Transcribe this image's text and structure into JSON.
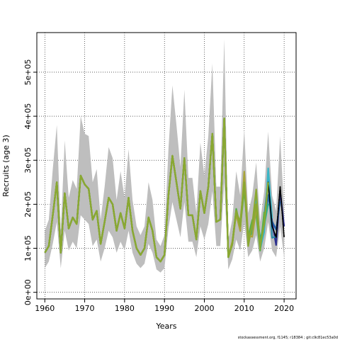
{
  "chart_data": {
    "type": "line",
    "xlabel": "Years",
    "ylabel": "Recruits (age 3)",
    "xlim": [
      1958,
      2023
    ],
    "ylim": [
      -15000,
      590000
    ],
    "x_ticks": [
      1960,
      1970,
      1980,
      1990,
      2000,
      2010,
      2020
    ],
    "x_tick_labels": [
      "1960",
      "1970",
      "1980",
      "1990",
      "2000",
      "2010",
      "2020"
    ],
    "y_ticks": [
      0,
      100000,
      200000,
      300000,
      400000,
      500000
    ],
    "y_tick_labels": [
      "0e+00",
      "1e+05",
      "2e+05",
      "3e+05",
      "4e+05",
      "5e+05"
    ],
    "grid": true,
    "footer": "stockassessment.org, f1145; r18384 ; git:c9c81ec53a0d",
    "years": [
      1960,
      1961,
      1962,
      1963,
      1964,
      1965,
      1966,
      1967,
      1968,
      1969,
      1970,
      1971,
      1972,
      1973,
      1974,
      1975,
      1976,
      1977,
      1978,
      1979,
      1980,
      1981,
      1982,
      1983,
      1984,
      1985,
      1986,
      1987,
      1988,
      1989,
      1990,
      1991,
      1992,
      1993,
      1994,
      1995,
      1996,
      1997,
      1998,
      1999,
      2000,
      2001,
      2002,
      2003,
      2004,
      2005,
      2006,
      2007,
      2008,
      2009,
      2010,
      2011,
      2012,
      2013,
      2014,
      2015,
      2016,
      2017,
      2018,
      2019,
      2020
    ],
    "colors": {
      "ci_band": "#bebebe",
      "estimate": "#000000",
      "peel_series": [
        "#2b2f8f",
        "#1f5fa8",
        "#2a8aa8",
        "#3ab5c6",
        "#2bb08a",
        "#55b04a",
        "#8aa832",
        "#a8a43a"
      ]
    },
    "series": [
      {
        "role": "estimate",
        "values": [
          90000,
          105000,
          175000,
          250000,
          90000,
          225000,
          145000,
          170000,
          155000,
          265000,
          245000,
          235000,
          165000,
          185000,
          110000,
          160000,
          215000,
          200000,
          140000,
          180000,
          145000,
          215000,
          140000,
          100000,
          85000,
          100000,
          170000,
          140000,
          80000,
          70000,
          85000,
          220000,
          310000,
          250000,
          190000,
          305000,
          175000,
          175000,
          120000,
          230000,
          180000,
          240000,
          360000,
          160000,
          165000,
          395000,
          80000,
          110000,
          185000,
          150000,
          250000,
          120000,
          150000,
          200000,
          105000,
          155000,
          250000,
          150000,
          125000,
          240000,
          125000
        ]
      },
      {
        "role": "lower",
        "values": [
          55000,
          70000,
          110000,
          160000,
          55000,
          140000,
          95000,
          115000,
          100000,
          175000,
          165000,
          155000,
          105000,
          120000,
          70000,
          100000,
          140000,
          125000,
          90000,
          115000,
          95000,
          140000,
          90000,
          65000,
          55000,
          65000,
          110000,
          90000,
          52000,
          45000,
          55000,
          145000,
          205000,
          165000,
          125000,
          205000,
          115000,
          115000,
          80000,
          150000,
          120000,
          155000,
          230000,
          105000,
          105000,
          250000,
          52000,
          75000,
          120000,
          95000,
          160000,
          80000,
          95000,
          130000,
          70000,
          100000,
          160000,
          95000,
          80000,
          150000,
          80000
        ]
      },
      {
        "role": "upper",
        "values": [
          140000,
          165000,
          280000,
          380000,
          140000,
          345000,
          215000,
          255000,
          235000,
          400000,
          360000,
          355000,
          250000,
          280000,
          165000,
          240000,
          330000,
          305000,
          210000,
          275000,
          215000,
          325000,
          210000,
          150000,
          130000,
          150000,
          250000,
          210000,
          120000,
          105000,
          130000,
          325000,
          470000,
          380000,
          285000,
          460000,
          260000,
          260000,
          180000,
          340000,
          265000,
          355000,
          520000,
          240000,
          240000,
          575000,
          120000,
          165000,
          275000,
          220000,
          370000,
          180000,
          220000,
          295000,
          160000,
          230000,
          365000,
          220000,
          185000,
          355000,
          185000
        ]
      }
    ]
  }
}
